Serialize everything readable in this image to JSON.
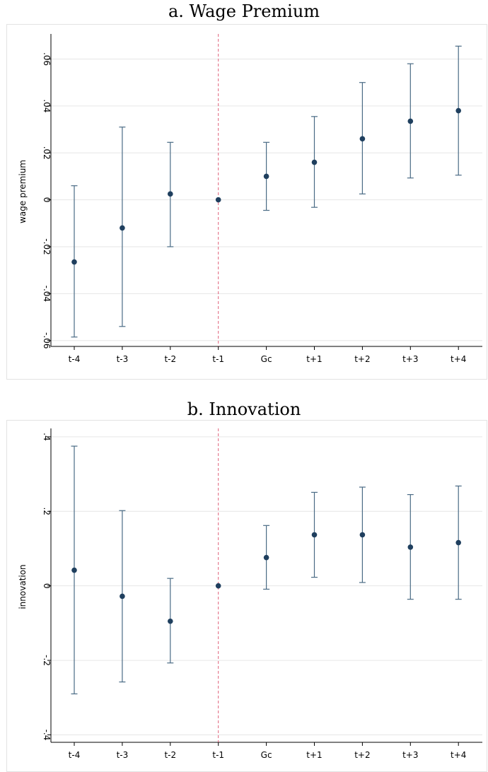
{
  "chart_data": [
    {
      "type": "errorbar",
      "title": "a. Wage Premium",
      "xlabel": "",
      "ylabel": "wage premium",
      "categories": [
        "t-4",
        "t-3",
        "t-2",
        "t-1",
        "Gc",
        "t+1",
        "t+2",
        "t+3",
        "t+4"
      ],
      "yticks": [
        -0.06,
        -0.04,
        -0.02,
        0,
        0.02,
        0.04,
        0.06
      ],
      "ytick_labels": [
        "-.06",
        "-.04",
        "-.02",
        "0",
        ".02",
        ".04",
        ".06"
      ],
      "ylim": [
        -0.0625,
        0.0695
      ],
      "reference_line": {
        "category": "t-1",
        "style": "dashed",
        "color": "#e0607a"
      },
      "grid": true,
      "colors": {
        "marker": "#1f3f5e",
        "errorbar": "#4a6b85",
        "grid": "#e6e6e6"
      },
      "points": [
        {
          "x": "t-4",
          "estimate": -0.0265,
          "lower": -0.0585,
          "upper": 0.006
        },
        {
          "x": "t-3",
          "estimate": -0.012,
          "lower": -0.054,
          "upper": 0.031
        },
        {
          "x": "t-2",
          "estimate": 0.0025,
          "lower": -0.02,
          "upper": 0.0245
        },
        {
          "x": "t-1",
          "estimate": 0.0,
          "lower": 0.0,
          "upper": 0.0
        },
        {
          "x": "Gc",
          "estimate": 0.01,
          "lower": -0.0045,
          "upper": 0.0245
        },
        {
          "x": "t+1",
          "estimate": 0.016,
          "lower": -0.0032,
          "upper": 0.0355
        },
        {
          "x": "t+2",
          "estimate": 0.026,
          "lower": 0.0025,
          "upper": 0.05
        },
        {
          "x": "t+3",
          "estimate": 0.0335,
          "lower": 0.0093,
          "upper": 0.058
        },
        {
          "x": "t+4",
          "estimate": 0.038,
          "lower": 0.0105,
          "upper": 0.0655
        }
      ]
    },
    {
      "type": "errorbar",
      "title": "b. Innovation",
      "xlabel": "",
      "ylabel": "innovation",
      "categories": [
        "t-4",
        "t-3",
        "t-2",
        "t-1",
        "Gc",
        "t+1",
        "t+2",
        "t+3",
        "t+4"
      ],
      "yticks": [
        -0.4,
        -0.2,
        0,
        0.2,
        0.4
      ],
      "ytick_labels": [
        "-.4",
        "-.2",
        "0",
        ".2",
        ".4"
      ],
      "ylim": [
        -0.42,
        0.415
      ],
      "reference_line": {
        "category": "t-1",
        "style": "dashed",
        "color": "#e0607a"
      },
      "grid": true,
      "colors": {
        "marker": "#1f3f5e",
        "errorbar": "#4a6b85",
        "grid": "#e6e6e6"
      },
      "points": [
        {
          "x": "t-4",
          "estimate": 0.042,
          "lower": -0.29,
          "upper": 0.375
        },
        {
          "x": "t-3",
          "estimate": -0.028,
          "lower": -0.258,
          "upper": 0.202
        },
        {
          "x": "t-2",
          "estimate": -0.095,
          "lower": -0.207,
          "upper": 0.02
        },
        {
          "x": "t-1",
          "estimate": 0.0,
          "lower": 0.0,
          "upper": 0.0
        },
        {
          "x": "Gc",
          "estimate": 0.076,
          "lower": -0.009,
          "upper": 0.162
        },
        {
          "x": "t+1",
          "estimate": 0.137,
          "lower": 0.023,
          "upper": 0.251
        },
        {
          "x": "t+2",
          "estimate": 0.137,
          "lower": 0.009,
          "upper": 0.265
        },
        {
          "x": "t+3",
          "estimate": 0.104,
          "lower": -0.036,
          "upper": 0.245
        },
        {
          "x": "t+4",
          "estimate": 0.116,
          "lower": -0.036,
          "upper": 0.268
        }
      ]
    }
  ]
}
